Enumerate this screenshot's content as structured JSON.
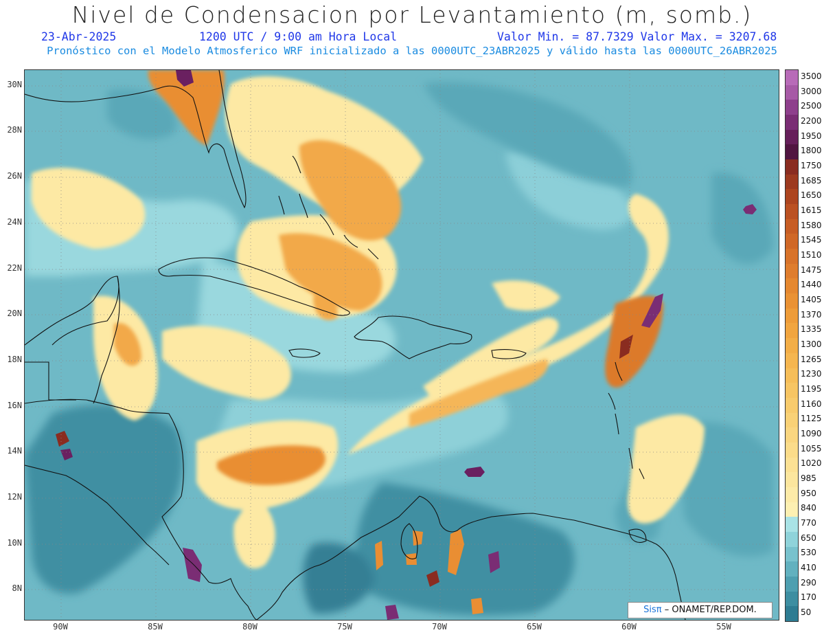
{
  "title": "Nivel de Condensacion por Levantamiento (m, somb.)",
  "date": "23-Abr-2025",
  "time": "1200 UTC / 9:00 am Hora Local",
  "minmax": "Valor Min. = 87.7329  Valor Max. = 3207.68",
  "subtitle": "Pronóstico con el Modelo Atmosferico WRF inicializado a las 0000UTC_23ABR2025 y válido hasta las  0000UTC_26ABR2025",
  "credit": {
    "sis": "Sisπ",
    "rest": "– ONAMET/REP.DOM."
  },
  "lat_labels": [
    "30N",
    "28N",
    "26N",
    "24N",
    "22N",
    "20N",
    "18N",
    "16N",
    "14N",
    "12N",
    "10N",
    "8N"
  ],
  "lon_labels": [
    "90W",
    "85W",
    "80W",
    "75W",
    "70W",
    "65W",
    "60W",
    "55W"
  ],
  "legend": [
    {
      "label": "3500",
      "color": "#b86bb8"
    },
    {
      "label": "3000",
      "color": "#a75aa6"
    },
    {
      "label": "2500",
      "color": "#8e3f8c"
    },
    {
      "label": "2200",
      "color": "#7a2d74"
    },
    {
      "label": "1950",
      "color": "#661f5a"
    },
    {
      "label": "1800",
      "color": "#511541"
    },
    {
      "label": "1750",
      "color": "#8a2c20"
    },
    {
      "label": "1685",
      "color": "#9d3a1f"
    },
    {
      "label": "1650",
      "color": "#ad451f"
    },
    {
      "label": "1615",
      "color": "#bb5122"
    },
    {
      "label": "1580",
      "color": "#c75d24"
    },
    {
      "label": "1545",
      "color": "#d06827"
    },
    {
      "label": "1510",
      "color": "#d8732a"
    },
    {
      "label": "1475",
      "color": "#df7d2d"
    },
    {
      "label": "1440",
      "color": "#e58830"
    },
    {
      "label": "1405",
      "color": "#ea9234"
    },
    {
      "label": "1370",
      "color": "#ee9c39"
    },
    {
      "label": "1335",
      "color": "#f1a53f"
    },
    {
      "label": "1300",
      "color": "#f3ae47"
    },
    {
      "label": "1265",
      "color": "#f5b650"
    },
    {
      "label": "1230",
      "color": "#f6be59"
    },
    {
      "label": "1195",
      "color": "#f7c563"
    },
    {
      "label": "1160",
      "color": "#f8cb6c"
    },
    {
      "label": "1125",
      "color": "#f9d176"
    },
    {
      "label": "1090",
      "color": "#fad680"
    },
    {
      "label": "1055",
      "color": "#fbdc8a"
    },
    {
      "label": "1020",
      "color": "#fce194"
    },
    {
      "label": "985",
      "color": "#fce69e"
    },
    {
      "label": "950",
      "color": "#fdeba8"
    },
    {
      "label": "840",
      "color": "#fdf0b2"
    },
    {
      "label": "770",
      "color": "#a9e3e6"
    },
    {
      "label": "650",
      "color": "#8fd3da"
    },
    {
      "label": "530",
      "color": "#78c2cd"
    },
    {
      "label": "410",
      "color": "#62b1bf"
    },
    {
      "label": "290",
      "color": "#4e9fb0"
    },
    {
      "label": "170",
      "color": "#3d8ea1"
    },
    {
      "label": "50",
      "color": "#2e7c92"
    }
  ]
}
